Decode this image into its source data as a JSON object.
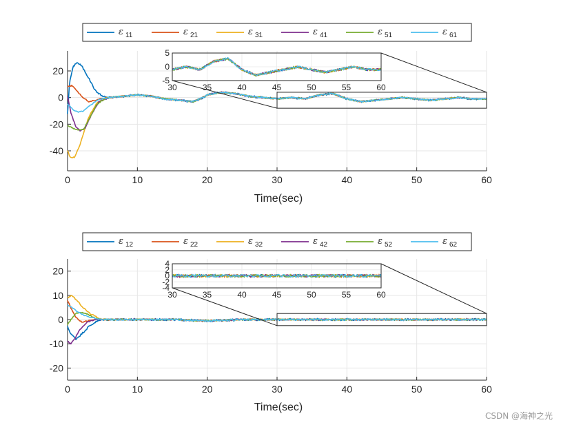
{
  "chart_data": [
    {
      "type": "line",
      "id": "top",
      "xlabel": "Time(sec)",
      "xlim": [
        0,
        60
      ],
      "ylim": [
        -55,
        35
      ],
      "xticks": [
        0,
        10,
        20,
        30,
        40,
        50,
        60
      ],
      "yticks": [
        -40,
        -20,
        0,
        20
      ],
      "grid": true,
      "legend": {
        "placement": "top-outside",
        "entries": [
          {
            "symbol": "ε",
            "sub": "11",
            "color": "#0072BD"
          },
          {
            "symbol": "ε",
            "sub": "21",
            "color": "#D95319"
          },
          {
            "symbol": "ε",
            "sub": "31",
            "color": "#EDB120"
          },
          {
            "symbol": "ε",
            "sub": "41",
            "color": "#7E2F8E"
          },
          {
            "symbol": "ε",
            "sub": "51",
            "color": "#77AC30"
          },
          {
            "symbol": "ε",
            "sub": "61",
            "color": "#4DBEEE"
          }
        ]
      },
      "transient": [
        {
          "series": "ε11",
          "points": [
            [
              0,
              -12
            ],
            [
              0.3,
              12
            ],
            [
              0.8,
              23
            ],
            [
              1.3,
              26.5
            ],
            [
              2,
              24
            ],
            [
              3,
              15
            ],
            [
              4,
              5
            ],
            [
              5,
              1
            ],
            [
              6,
              0
            ]
          ]
        },
        {
          "series": "ε21",
          "points": [
            [
              0,
              8
            ],
            [
              0.6,
              9
            ],
            [
              1.2,
              6
            ],
            [
              2,
              1
            ],
            [
              3,
              -3
            ],
            [
              4,
              -2
            ],
            [
              5,
              -0.5
            ],
            [
              6,
              0
            ]
          ]
        },
        {
          "series": "ε31",
          "points": [
            [
              0,
              -40
            ],
            [
              0.4,
              -45
            ],
            [
              1,
              -45
            ],
            [
              1.8,
              -35
            ],
            [
              3,
              -15
            ],
            [
              4.2,
              -4
            ],
            [
              5.5,
              -0.5
            ],
            [
              6,
              0
            ]
          ]
        },
        {
          "series": "ε41",
          "points": [
            [
              0,
              1
            ],
            [
              0.5,
              -12
            ],
            [
              1.2,
              -22
            ],
            [
              1.8,
              -25
            ],
            [
              2.5,
              -23
            ],
            [
              3.5,
              -12
            ],
            [
              4.5,
              -3
            ],
            [
              6,
              0
            ]
          ]
        },
        {
          "series": "ε51",
          "points": [
            [
              0,
              -21
            ],
            [
              0.8,
              -23
            ],
            [
              1.5,
              -24.5
            ],
            [
              2.3,
              -24
            ],
            [
              3.2,
              -15
            ],
            [
              4.2,
              -5
            ],
            [
              5.5,
              -0.5
            ],
            [
              6,
              0
            ]
          ]
        },
        {
          "series": "ε61",
          "points": [
            [
              0,
              -5
            ],
            [
              0.8,
              -9
            ],
            [
              1.5,
              -11
            ],
            [
              2.3,
              -10
            ],
            [
              3.2,
              -6
            ],
            [
              4.2,
              -2
            ],
            [
              5.5,
              -0.3
            ],
            [
              6,
              0
            ]
          ]
        }
      ],
      "steady": {
        "points": [
          [
            6,
            0
          ],
          [
            8,
            1
          ],
          [
            10,
            2
          ],
          [
            12,
            1
          ],
          [
            14,
            -1
          ],
          [
            16,
            -2
          ],
          [
            18,
            -3
          ],
          [
            19,
            -1
          ],
          [
            20,
            2
          ],
          [
            22,
            4
          ],
          [
            24,
            3
          ],
          [
            26,
            1
          ],
          [
            28,
            0
          ],
          [
            30,
            -1
          ],
          [
            32,
            0
          ],
          [
            34,
            -1
          ],
          [
            36,
            2
          ],
          [
            38,
            3
          ],
          [
            40,
            -1
          ],
          [
            42,
            -3
          ],
          [
            44,
            -2
          ],
          [
            46,
            -1
          ],
          [
            48,
            0
          ],
          [
            50,
            -1
          ],
          [
            52,
            -2
          ],
          [
            54,
            -1
          ],
          [
            56,
            0
          ],
          [
            58,
            -1
          ],
          [
            60,
            -1
          ]
        ]
      },
      "inset": {
        "xlim": [
          30,
          60
        ],
        "ylim": [
          -5,
          5
        ],
        "xticks": [
          30,
          35,
          40,
          45,
          50,
          55,
          60
        ],
        "yticks": [
          -5,
          0,
          5
        ]
      },
      "zoom_region": {
        "x": [
          30,
          60
        ],
        "y": [
          -8,
          4
        ]
      }
    },
    {
      "type": "line",
      "id": "bottom",
      "xlabel": "Time(sec)",
      "xlim": [
        0,
        60
      ],
      "ylim": [
        -25,
        25
      ],
      "xticks": [
        0,
        10,
        20,
        30,
        40,
        50,
        60
      ],
      "yticks": [
        -20,
        -10,
        0,
        10,
        20
      ],
      "grid": true,
      "legend": {
        "placement": "top-outside",
        "entries": [
          {
            "symbol": "ε",
            "sub": "12",
            "color": "#0072BD"
          },
          {
            "symbol": "ε",
            "sub": "22",
            "color": "#D95319"
          },
          {
            "symbol": "ε",
            "sub": "32",
            "color": "#EDB120"
          },
          {
            "symbol": "ε",
            "sub": "42",
            "color": "#7E2F8E"
          },
          {
            "symbol": "ε",
            "sub": "52",
            "color": "#77AC30"
          },
          {
            "symbol": "ε",
            "sub": "62",
            "color": "#4DBEEE"
          }
        ]
      },
      "transient": [
        {
          "series": "ε12",
          "points": [
            [
              0,
              -3
            ],
            [
              0.5,
              -6
            ],
            [
              1.2,
              -8
            ],
            [
              2,
              -6
            ],
            [
              3,
              -3
            ],
            [
              4,
              -1
            ],
            [
              5,
              0
            ]
          ]
        },
        {
          "series": "ε22",
          "points": [
            [
              0,
              8
            ],
            [
              0.6,
              4
            ],
            [
              1.2,
              1
            ],
            [
              2,
              -1
            ],
            [
              3,
              -0.5
            ],
            [
              4,
              0
            ],
            [
              5,
              0
            ]
          ]
        },
        {
          "series": "ε32",
          "points": [
            [
              0,
              9
            ],
            [
              0.6,
              10
            ],
            [
              1.3,
              8
            ],
            [
              2.2,
              5
            ],
            [
              3.2,
              2.5
            ],
            [
              4.2,
              1
            ],
            [
              5,
              0
            ]
          ]
        },
        {
          "series": "ε42",
          "points": [
            [
              0,
              -9
            ],
            [
              0.5,
              -10
            ],
            [
              1,
              -8
            ],
            [
              1.8,
              -4
            ],
            [
              2.8,
              -1
            ],
            [
              4,
              0
            ],
            [
              5,
              0
            ]
          ]
        },
        {
          "series": "ε52",
          "points": [
            [
              0,
              -2
            ],
            [
              0.5,
              0
            ],
            [
              1.2,
              2.5
            ],
            [
              2,
              3
            ],
            [
              3,
              2
            ],
            [
              4,
              0.5
            ],
            [
              5,
              0
            ]
          ]
        },
        {
          "series": "ε62",
          "points": [
            [
              0,
              6
            ],
            [
              0.6,
              5
            ],
            [
              1.3,
              3.5
            ],
            [
              2.2,
              2
            ],
            [
              3.2,
              1
            ],
            [
              4.2,
              0.3
            ],
            [
              5,
              0
            ]
          ]
        }
      ],
      "steady": {
        "points": [
          [
            5,
            0
          ],
          [
            10,
            0
          ],
          [
            15,
            0
          ],
          [
            20,
            -0.5
          ],
          [
            25,
            0
          ],
          [
            30,
            0
          ],
          [
            35,
            0
          ],
          [
            40,
            0
          ],
          [
            45,
            0
          ],
          [
            50,
            0
          ],
          [
            55,
            0
          ],
          [
            60,
            0
          ]
        ]
      },
      "inset": {
        "xlim": [
          30,
          60
        ],
        "ylim": [
          -4,
          4
        ],
        "xticks": [
          30,
          35,
          40,
          45,
          50,
          55,
          60
        ],
        "yticks": [
          -4,
          -2,
          0,
          2,
          4
        ]
      },
      "zoom_region": {
        "x": [
          30,
          60
        ],
        "y": [
          -2.5,
          2.5
        ]
      }
    }
  ],
  "watermark": "CSDN @海神之光"
}
